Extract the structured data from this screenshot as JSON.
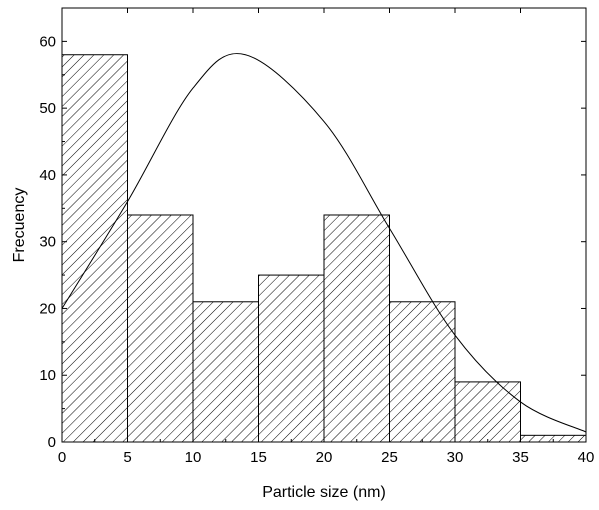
{
  "chart_data": {
    "type": "bar",
    "xlabel": "Particle size (nm)",
    "ylabel": "Frecuency",
    "xlim": [
      0,
      40
    ],
    "ylim": [
      0,
      65
    ],
    "x_ticks": [
      0,
      5,
      10,
      15,
      20,
      25,
      30,
      35,
      40
    ],
    "y_ticks": [
      0,
      10,
      20,
      30,
      40,
      50,
      60
    ],
    "bins": [
      {
        "start": 0,
        "end": 5,
        "value": 58
      },
      {
        "start": 5,
        "end": 10,
        "value": 34
      },
      {
        "start": 10,
        "end": 15,
        "value": 21
      },
      {
        "start": 15,
        "end": 20,
        "value": 25
      },
      {
        "start": 20,
        "end": 25,
        "value": 34
      },
      {
        "start": 25,
        "end": 30,
        "value": 21
      },
      {
        "start": 30,
        "end": 35,
        "value": 9
      },
      {
        "start": 35,
        "end": 40,
        "value": 1
      }
    ],
    "fit_curve": {
      "type": "gaussian",
      "peak_x": 14,
      "peak_y": 58,
      "x": [
        0,
        5,
        10,
        14,
        20,
        25,
        30,
        35,
        40
      ],
      "y": [
        20,
        36,
        53,
        58,
        48,
        32,
        16,
        6,
        1.5
      ]
    },
    "bar_fill": "diagonal-hatch",
    "grid": false,
    "colors": {
      "axis": "#000000",
      "bar_stroke": "#000000",
      "hatch": "#000000",
      "curve": "#000000",
      "background": "#ffffff"
    }
  }
}
